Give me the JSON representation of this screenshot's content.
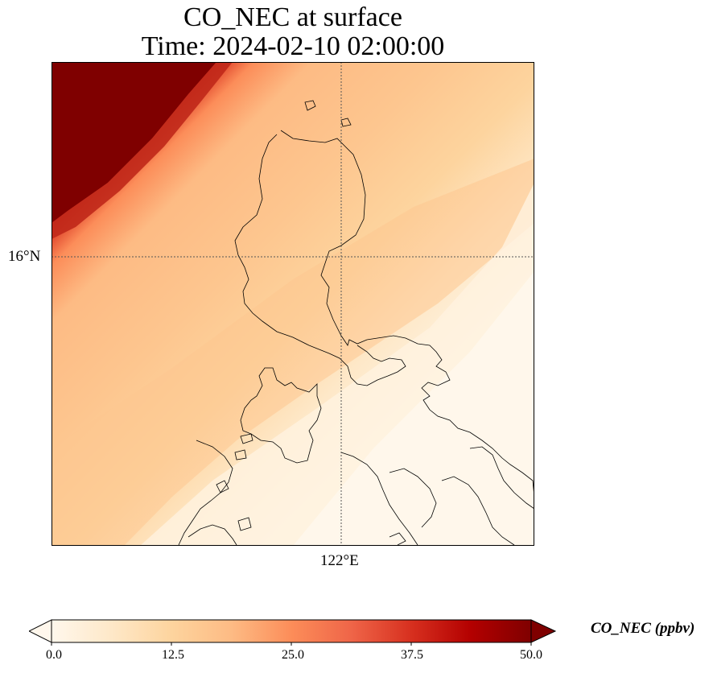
{
  "title": {
    "line1": "CO_NEC at surface",
    "line2": "Time: 2024-02-10 02:00:00"
  },
  "map": {
    "variable": "CO_NEC",
    "units": "ppbv",
    "lat_gridline_label": "16°N",
    "lon_gridline_label": "122°E",
    "region": "Luzon, Philippines",
    "field_description": "High values in northwest corner, decreasing toward southeast; moderate band over Luzon",
    "colormap": "OrRd",
    "coastline_color": "#000000"
  },
  "colorbar": {
    "label": "CO_NEC (ppbv)",
    "ticks": [
      "0.0",
      "12.5",
      "25.0",
      "37.5",
      "50.0"
    ],
    "min": 0.0,
    "max": 50.0,
    "extend": "both",
    "colors": [
      "#fff7ec",
      "#fee8c8",
      "#fdd49e",
      "#fdbb84",
      "#fc8d59",
      "#ef6548",
      "#d7301f",
      "#b30000",
      "#7f0000"
    ]
  }
}
